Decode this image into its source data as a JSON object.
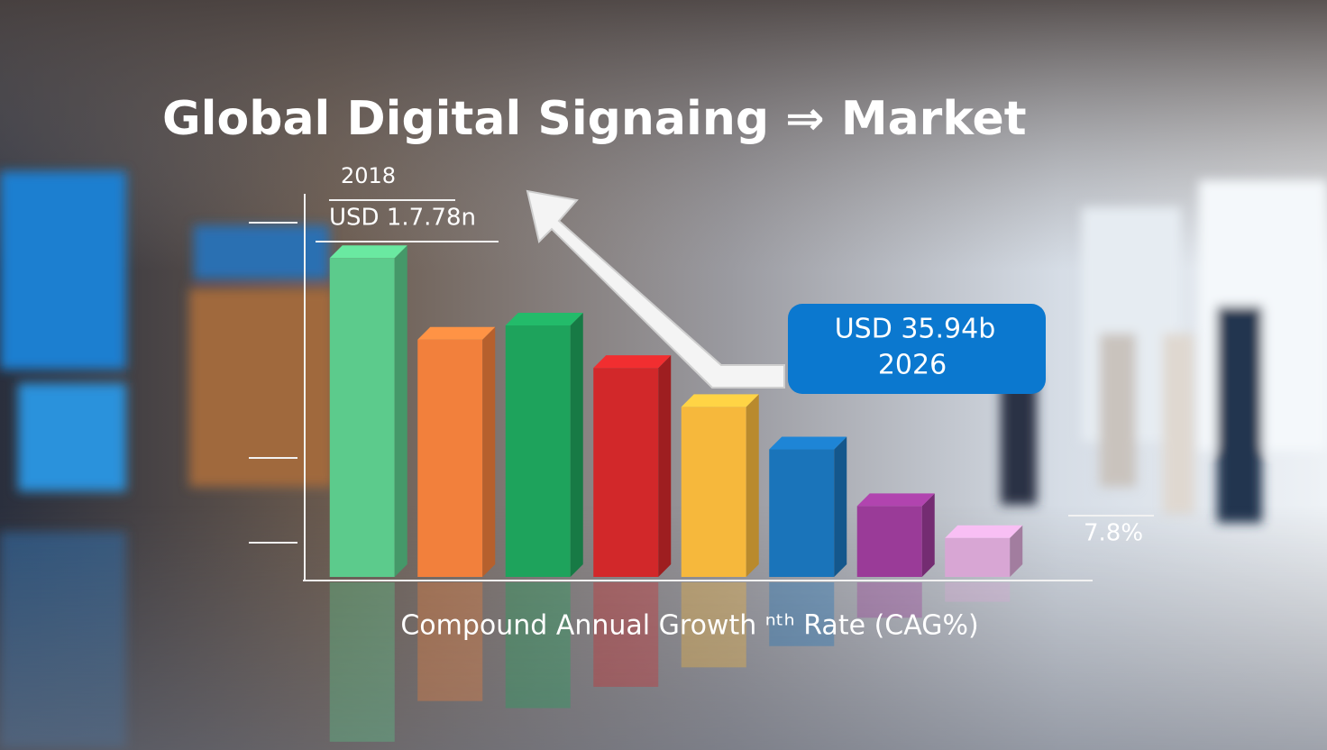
{
  "chart_data": {
    "type": "bar",
    "title": "Global Digital Signaing ⇒ Market",
    "x_label": "Compound Annual Growth ⁿᵗʰ Rate (CAG%)",
    "annotations": [
      "2018",
      "USD 1.7.78n",
      "USD 35.94b",
      "2026",
      "7.8%"
    ],
    "categories": [
      null,
      null,
      null,
      null,
      null,
      null,
      null,
      null
    ],
    "values": [
      90,
      67,
      71,
      59,
      48,
      36,
      20,
      11
    ],
    "colors": [
      "#5ccb8c",
      "#f2803c",
      "#1ea35c",
      "#d2282a",
      "#f6b83c",
      "#1a74ba",
      "#9a3b98",
      "#d8a6d4"
    ],
    "ylim": [
      0,
      100
    ]
  }
}
